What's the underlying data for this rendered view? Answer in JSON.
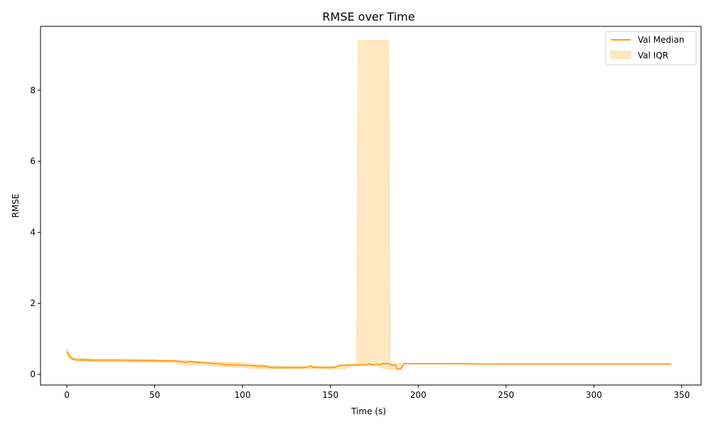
{
  "chart_data": {
    "type": "line",
    "title": "RMSE over Time",
    "xlabel": "Time (s)",
    "ylabel": "RMSE",
    "xlim": [
      -15,
      361
    ],
    "ylim": [
      -0.3,
      9.8
    ],
    "xticks": [
      0,
      50,
      100,
      150,
      200,
      250,
      300,
      350
    ],
    "yticks": [
      0,
      2,
      4,
      6,
      8
    ],
    "grid": false,
    "legend_position": "top-right",
    "colors": {
      "median": "#ff9f1c",
      "iqr_fill": "#ffe8c2",
      "iqr_edge": "#ffd89b"
    },
    "series": [
      {
        "name": "Val Median",
        "kind": "line",
        "x": [
          0,
          1,
          2,
          3,
          5,
          10,
          15,
          20,
          30,
          40,
          50,
          55,
          60,
          63,
          66,
          68,
          70,
          75,
          80,
          85,
          88,
          90,
          100,
          103,
          105,
          110,
          113,
          115,
          118,
          120,
          125,
          130,
          135,
          137,
          139,
          140,
          145,
          150,
          153,
          155,
          160,
          165,
          170,
          172,
          174,
          176,
          178,
          180,
          183,
          185,
          187,
          188,
          190,
          192,
          200,
          220,
          240,
          260,
          280,
          300,
          320,
          344
        ],
        "y": [
          0.64,
          0.55,
          0.48,
          0.44,
          0.41,
          0.41,
          0.4,
          0.4,
          0.4,
          0.39,
          0.39,
          0.38,
          0.38,
          0.37,
          0.35,
          0.34,
          0.36,
          0.34,
          0.32,
          0.3,
          0.29,
          0.27,
          0.26,
          0.25,
          0.24,
          0.23,
          0.23,
          0.2,
          0.19,
          0.19,
          0.19,
          0.19,
          0.19,
          0.21,
          0.24,
          0.2,
          0.19,
          0.19,
          0.2,
          0.25,
          0.26,
          0.26,
          0.27,
          0.3,
          0.27,
          0.29,
          0.28,
          0.3,
          0.3,
          0.26,
          0.26,
          0.15,
          0.15,
          0.3,
          0.3,
          0.3,
          0.29,
          0.29,
          0.29,
          0.29,
          0.29,
          0.29
        ]
      },
      {
        "name": "Val IQR",
        "kind": "band",
        "x": [
          0,
          1,
          3,
          5,
          10,
          15,
          20,
          30,
          40,
          50,
          60,
          65,
          70,
          80,
          90,
          100,
          105,
          110,
          115,
          120,
          130,
          140,
          150,
          155,
          158,
          160,
          162,
          165,
          166,
          167,
          175,
          182,
          183,
          184,
          185,
          190,
          192,
          200,
          220,
          250,
          300,
          344
        ],
        "low": [
          0.6,
          0.5,
          0.42,
          0.38,
          0.38,
          0.36,
          0.35,
          0.35,
          0.34,
          0.34,
          0.33,
          0.28,
          0.27,
          0.25,
          0.21,
          0.2,
          0.17,
          0.16,
          0.15,
          0.16,
          0.16,
          0.16,
          0.16,
          0.15,
          0.14,
          0.2,
          0.25,
          0.26,
          0.26,
          0.26,
          0.25,
          0.15,
          0.15,
          0.15,
          0.15,
          0.15,
          0.3,
          0.3,
          0.3,
          0.29,
          0.29,
          0.29
        ],
        "high": [
          0.72,
          0.62,
          0.5,
          0.46,
          0.45,
          0.43,
          0.42,
          0.42,
          0.42,
          0.41,
          0.4,
          0.39,
          0.38,
          0.35,
          0.34,
          0.32,
          0.29,
          0.28,
          0.24,
          0.23,
          0.22,
          0.22,
          0.22,
          0.23,
          0.26,
          0.28,
          0.28,
          0.28,
          9.4,
          9.4,
          9.4,
          9.4,
          9.4,
          0.3,
          0.3,
          0.3,
          0.3,
          0.3,
          0.3,
          0.29,
          0.29,
          0.29
        ]
      }
    ]
  }
}
